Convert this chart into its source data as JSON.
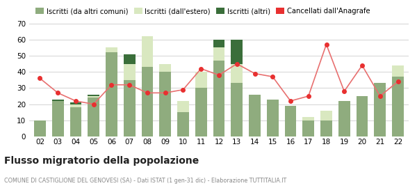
{
  "years": [
    "02",
    "03",
    "04",
    "05",
    "06",
    "07",
    "08",
    "09",
    "10",
    "11",
    "12",
    "13",
    "14",
    "15",
    "16",
    "17",
    "18",
    "19",
    "20",
    "21",
    "22"
  ],
  "iscritti_altri_comuni": [
    10,
    22,
    18,
    24,
    52,
    35,
    43,
    40,
    15,
    30,
    47,
    33,
    26,
    23,
    19,
    10,
    10,
    22,
    25,
    33,
    37
  ],
  "iscritti_estero": [
    0,
    0,
    2,
    1,
    3,
    10,
    19,
    5,
    7,
    10,
    8,
    12,
    0,
    0,
    0,
    2,
    6,
    0,
    0,
    0,
    7
  ],
  "iscritti_altri": [
    0,
    1,
    1,
    1,
    0,
    6,
    0,
    0,
    0,
    0,
    5,
    15,
    0,
    0,
    0,
    0,
    0,
    0,
    0,
    0,
    0
  ],
  "cancellati": [
    36,
    27,
    22,
    20,
    32,
    32,
    27,
    27,
    29,
    42,
    38,
    45,
    39,
    37,
    22,
    25,
    57,
    28,
    44,
    25,
    34
  ],
  "color_altri_comuni": "#8fac7e",
  "color_estero": "#d9e8c0",
  "color_altri": "#3a6e3a",
  "color_cancellati": "#e83030",
  "color_line": "#e87070",
  "ylim": [
    0,
    70
  ],
  "yticks": [
    0,
    10,
    20,
    30,
    40,
    50,
    60,
    70
  ],
  "title": "Flusso migratorio della popolazione",
  "subtitle": "COMUNE DI CASTIGLIONE DEL GENOVESI (SA) - Dati ISTAT (1 gen-31 dic) - Elaborazione TUTTITALIA.IT",
  "legend_labels": [
    "Iscritti (da altri comuni)",
    "Iscritti (dall'estero)",
    "Iscritti (altri)",
    "Cancellati dall'Anagrafe"
  ],
  "background_color": "#ffffff",
  "grid_color": "#cccccc"
}
